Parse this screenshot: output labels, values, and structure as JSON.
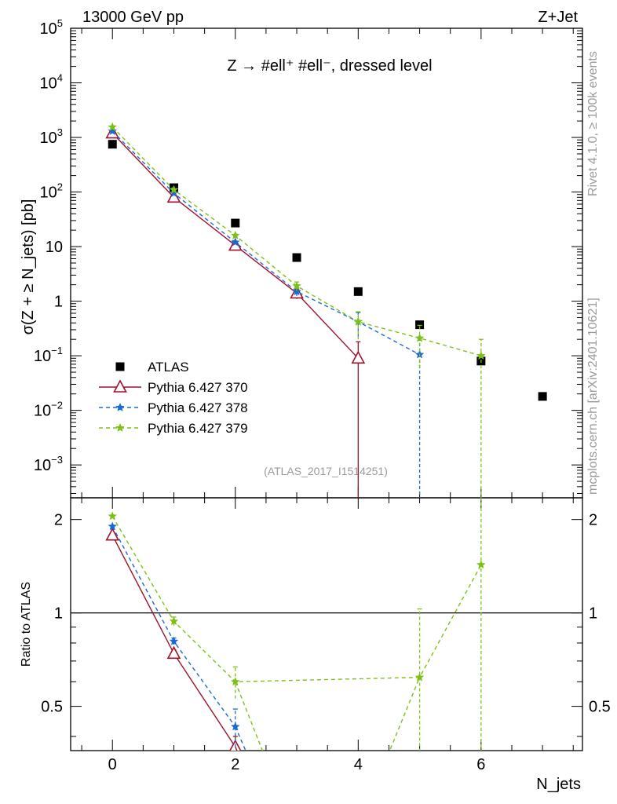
{
  "header": {
    "left": "13000 GeV pp",
    "right": "Z+Jet"
  },
  "side_labels": {
    "rivet": "Rivet 4.1.0, ≥ 100k events",
    "mcplots": "mcplots.cern.ch [arXiv:2401.10621]"
  },
  "colors": {
    "atlas": "#000000",
    "p370": "#a0102a",
    "p378": "#1a6ad6",
    "p379": "#7cc216"
  },
  "chart_data": {
    "type": "scatter",
    "title": "Z → #ell⁺ #ell⁻, dressed level",
    "analysis_tag": "(ATLAS_2017_I1514251)",
    "xlabel": "N_jets",
    "ylabel": "σ(Z + ≥ N_jets) [pb]",
    "xlim": [
      -0.68,
      7.65
    ],
    "ylim": [
      0.00025,
      100000
    ],
    "yscale": "log",
    "xticks": [
      0,
      2,
      4,
      6
    ],
    "yticks": [
      {
        "v": 0.001,
        "base": "10",
        "exp": "−3"
      },
      {
        "v": 0.01,
        "base": "10",
        "exp": "−2"
      },
      {
        "v": 0.1,
        "base": "10",
        "exp": "−1"
      },
      {
        "v": 1,
        "base": "1",
        "exp": ""
      },
      {
        "v": 10,
        "base": "10",
        "exp": ""
      },
      {
        "v": 100,
        "base": "10",
        "exp": "2"
      },
      {
        "v": 1000,
        "base": "10",
        "exp": "3"
      },
      {
        "v": 10000,
        "base": "10",
        "exp": "4"
      },
      {
        "v": 100000,
        "base": "10",
        "exp": "5"
      }
    ],
    "series": [
      {
        "name": "ATLAS",
        "key": "atlas",
        "marker": "square",
        "line": "none",
        "x": [
          0,
          1,
          2,
          3,
          4,
          5,
          6,
          7
        ],
        "y": [
          750,
          120,
          27,
          6.3,
          1.5,
          0.37,
          0.08,
          0.018
        ],
        "err": [
          0,
          0,
          0,
          0,
          0,
          0,
          0,
          0
        ]
      },
      {
        "name": "Pythia 6.427 370",
        "key": "p370",
        "marker": "triangle",
        "line": "solid",
        "x": [
          0,
          1,
          2,
          3,
          4
        ],
        "y": [
          1200,
          80,
          10.5,
          1.4,
          0.09
        ],
        "err": [
          0,
          0,
          0,
          0.3,
          0.09
        ]
      },
      {
        "name": "Pythia 6.427 378",
        "key": "p378",
        "marker": "star",
        "line": "dashed",
        "x": [
          0,
          1,
          2,
          3,
          4,
          5
        ],
        "y": [
          1300,
          95,
          12,
          1.5,
          0.42,
          0.105
        ],
        "err": [
          0,
          0,
          0,
          0.25,
          0.2,
          0.105
        ]
      },
      {
        "name": "Pythia 6.427 379",
        "key": "p379",
        "marker": "star",
        "line": "dashed",
        "x": [
          0,
          1,
          2,
          3,
          4,
          5,
          6
        ],
        "y": [
          1550,
          110,
          16,
          1.9,
          0.42,
          0.21,
          0.1
        ],
        "err": [
          0,
          0,
          0,
          0.35,
          0.22,
          0.15,
          0.1
        ]
      }
    ],
    "ratio": {
      "ylabel": "Ratio to ATLAS",
      "ylim": [
        0.36,
        2.35
      ],
      "yscale": "log",
      "yticks": [
        {
          "v": 0.5,
          "label": "0.5"
        },
        {
          "v": 1,
          "label": "1"
        },
        {
          "v": 2,
          "label": "2"
        }
      ],
      "series": [
        {
          "key": "p370",
          "x": [
            0,
            1,
            2
          ],
          "y": [
            1.78,
            0.74,
            0.37
          ],
          "err": [
            0,
            0.02,
            0.03
          ]
        },
        {
          "key": "p378",
          "x": [
            0,
            1,
            2
          ],
          "y": [
            1.9,
            0.81,
            0.43
          ],
          "err": [
            0,
            0.02,
            0.06
          ]
        },
        {
          "key": "p379",
          "x": [
            0,
            1,
            2,
            5,
            6
          ],
          "y": [
            2.05,
            0.94,
            0.6,
            0.62,
            1.43
          ],
          "err": [
            0,
            0.03,
            0.07,
            0.41,
            1.43
          ]
        }
      ]
    }
  }
}
